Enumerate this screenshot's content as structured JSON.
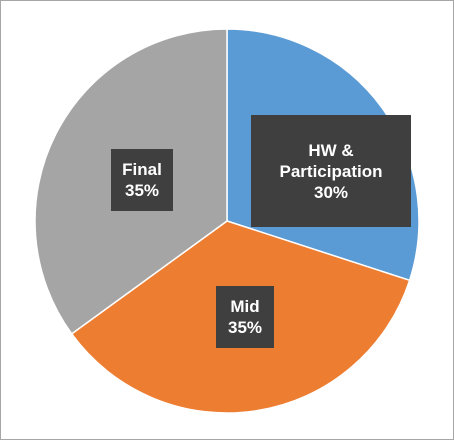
{
  "chart_data": {
    "type": "pie",
    "title": "",
    "slices": [
      {
        "label": "HW & Participation",
        "label_lines": [
          "HW &",
          "Participation"
        ],
        "value": 30,
        "display": "30%",
        "color": "#5b9bd5"
      },
      {
        "label": "Mid",
        "label_lines": [
          "Mid"
        ],
        "value": 35,
        "display": "35%",
        "color": "#ed7d31"
      },
      {
        "label": "Final",
        "label_lines": [
          "Final"
        ],
        "value": 35,
        "display": "35%",
        "color": "#a5a5a5"
      }
    ],
    "start": "top (12 o'clock)",
    "direction": "clockwise",
    "legend": "none",
    "data_labels": "dark boxes with category and percentage"
  }
}
